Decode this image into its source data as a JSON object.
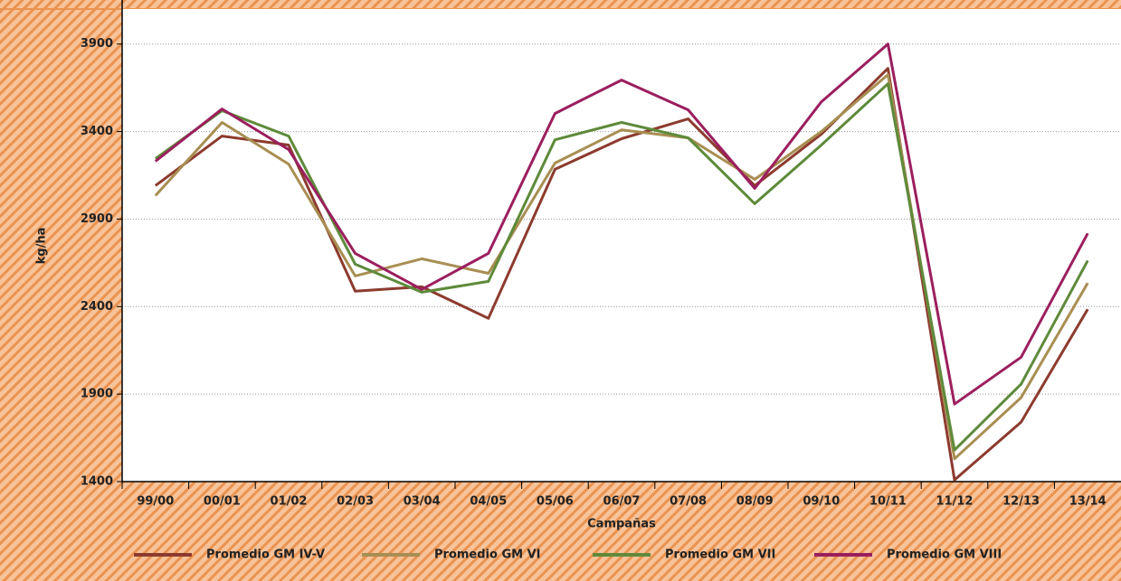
{
  "chart_data": {
    "type": "line",
    "x_label": "Campañas",
    "y_label": "kg/ha",
    "categories": [
      "99/00",
      "00/01",
      "01/02",
      "02/03",
      "03/04",
      "04/05",
      "05/06",
      "06/07",
      "07/08",
      "08/09",
      "09/10",
      "10/11",
      "11/12",
      "12/13",
      "13/14"
    ],
    "series": [
      {
        "name": "Promedio GM IV-V",
        "color": "#8c3b2e",
        "values": [
          3091,
          3374,
          3323,
          2488,
          2513,
          2333,
          3184,
          3359,
          3472,
          3091,
          3385,
          3761,
          1410,
          1740,
          2385
        ]
      },
      {
        "name": "Promedio GM VI",
        "color": "#a88e52",
        "values": [
          3034,
          3452,
          3214,
          2575,
          2673,
          2590,
          3220,
          3410,
          3364,
          3127,
          3400,
          3725,
          1530,
          1880,
          2534
        ]
      },
      {
        "name": "Promedio GM VII",
        "color": "#5e8a3a",
        "values": [
          3245,
          3519,
          3374,
          2642,
          2482,
          2544,
          3353,
          3452,
          3364,
          2988,
          3323,
          3673,
          1580,
          1957,
          2663
        ]
      },
      {
        "name": "Promedio GM VIII",
        "color": "#9b1f5e",
        "values": [
          3230,
          3529,
          3297,
          2704,
          2498,
          2704,
          3503,
          3694,
          3524,
          3075,
          3570,
          3900,
          1843,
          2111,
          2818
        ]
      }
    ],
    "ylim": [
      1400,
      4100
    ],
    "yticks": [
      1400,
      1900,
      2400,
      2900,
      3400,
      3900
    ],
    "grid": true
  }
}
